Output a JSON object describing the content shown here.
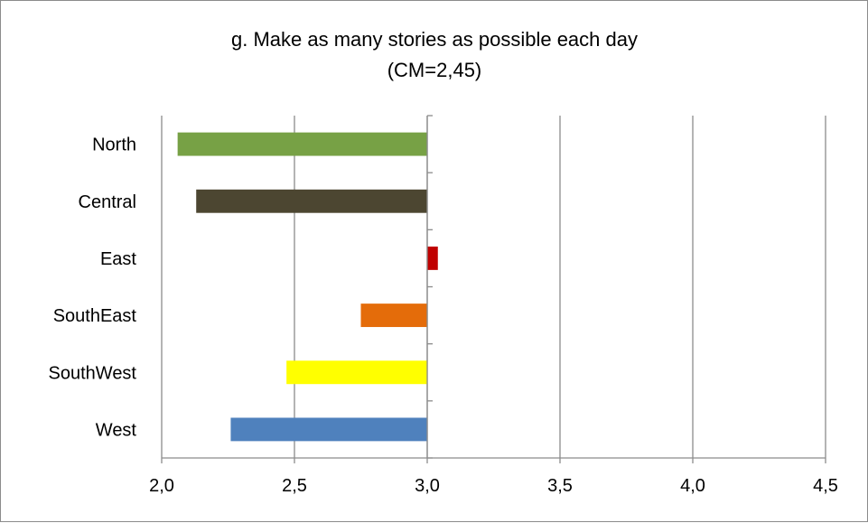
{
  "chart_data": {
    "type": "bar",
    "orientation": "horizontal",
    "title": "g. Make as many stories as possible each day",
    "subtitle": "(CM=2,45)",
    "xlabel": "",
    "ylabel": "",
    "xlim": [
      2.0,
      4.5
    ],
    "x_ticks": [
      "2,0",
      "2,5",
      "3,0",
      "3,5",
      "4,0",
      "4,5"
    ],
    "x_tick_values": [
      2.0,
      2.5,
      3.0,
      3.5,
      4.0,
      4.5
    ],
    "baseline": 3.0,
    "grid": "vertical",
    "legend": "none",
    "categories": [
      "North",
      "Central",
      "East",
      "SouthEast",
      "SouthWest",
      "West"
    ],
    "values": [
      2.06,
      2.13,
      3.04,
      2.75,
      2.47,
      2.26
    ],
    "colors": [
      "#77A145",
      "#4C4631",
      "#C00000",
      "#E46C0A",
      "#FFFF00",
      "#4F81BD"
    ]
  }
}
